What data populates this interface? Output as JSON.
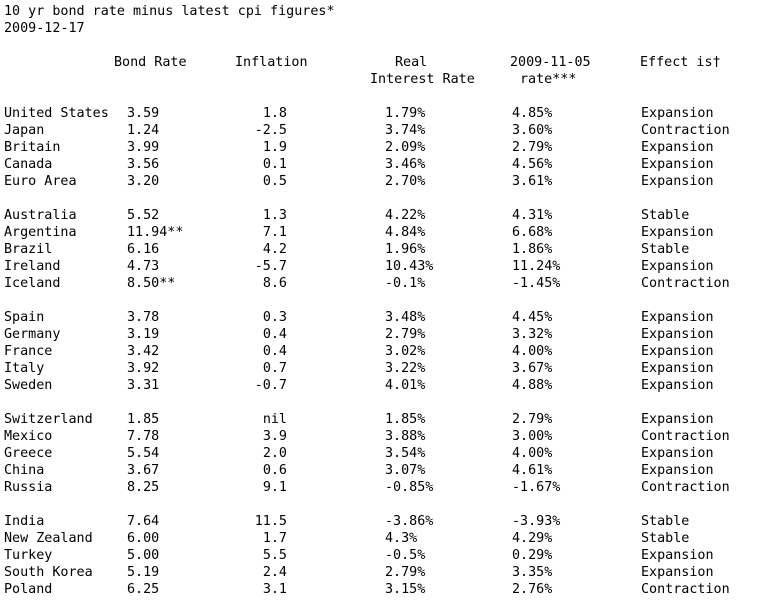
{
  "page": {
    "title": "10 yr bond rate minus latest cpi figures*",
    "date": "2009-12-17"
  },
  "header": {
    "bond_rate": "Bond Rate",
    "inflation": "Inflation",
    "real_line1": "Real",
    "real_line2": "Interest Rate",
    "rate_line1": "2009-11-05",
    "rate_line2": "rate***",
    "effect": "Effect is†"
  },
  "colors": {
    "text": "#000000",
    "background": "#ffffff"
  },
  "groups": [
    [
      {
        "country": "United States",
        "bond": "3.59",
        "inflation": "1.8",
        "real": "1.79%",
        "rate": "4.85%",
        "effect": "Expansion"
      },
      {
        "country": "Japan",
        "bond": "1.24",
        "inflation": "-2.5",
        "real": "3.74%",
        "rate": "3.60%",
        "effect": "Contraction"
      },
      {
        "country": "Britain",
        "bond": "3.99",
        "inflation": "1.9",
        "real": "2.09%",
        "rate": "2.79%",
        "effect": "Expansion"
      },
      {
        "country": "Canada",
        "bond": "3.56",
        "inflation": "0.1",
        "real": "3.46%",
        "rate": "4.56%",
        "effect": "Expansion"
      },
      {
        "country": "Euro Area",
        "bond": "3.20",
        "inflation": "0.5",
        "real": "2.70%",
        "rate": "3.61%",
        "effect": "Expansion"
      }
    ],
    [
      {
        "country": "Australia",
        "bond": "5.52",
        "inflation": "1.3",
        "real": "4.22%",
        "rate": "4.31%",
        "effect": "Stable"
      },
      {
        "country": "Argentina",
        "bond": "11.94**",
        "inflation": "7.1",
        "real": "4.84%",
        "rate": "6.68%",
        "effect": "Expansion"
      },
      {
        "country": "Brazil",
        "bond": "6.16",
        "inflation": "4.2",
        "real": "1.96%",
        "rate": "1.86%",
        "effect": "Stable"
      },
      {
        "country": "Ireland",
        "bond": "4.73",
        "inflation": "-5.7",
        "real": "10.43%",
        "rate": "11.24%",
        "effect": "Expansion"
      },
      {
        "country": "Iceland",
        "bond": "8.50**",
        "inflation": "8.6",
        "real": "-0.1%",
        "rate": "-1.45%",
        "effect": "Contraction"
      }
    ],
    [
      {
        "country": "Spain",
        "bond": "3.78",
        "inflation": "0.3",
        "real": "3.48%",
        "rate": "4.45%",
        "effect": "Expansion"
      },
      {
        "country": "Germany",
        "bond": "3.19",
        "inflation": "0.4",
        "real": "2.79%",
        "rate": "3.32%",
        "effect": "Expansion"
      },
      {
        "country": "France",
        "bond": "3.42",
        "inflation": "0.4",
        "real": "3.02%",
        "rate": "4.00%",
        "effect": "Expansion"
      },
      {
        "country": "Italy",
        "bond": "3.92",
        "inflation": "0.7",
        "real": "3.22%",
        "rate": "3.67%",
        "effect": "Expansion"
      },
      {
        "country": "Sweden",
        "bond": "3.31",
        "inflation": "-0.7",
        "real": "4.01%",
        "rate": "4.88%",
        "effect": "Expansion"
      }
    ],
    [
      {
        "country": "Switzerland",
        "bond": "1.85",
        "inflation": "nil",
        "real": "1.85%",
        "rate": "2.79%",
        "effect": "Expansion"
      },
      {
        "country": "Mexico",
        "bond": "7.78",
        "inflation": "3.9",
        "real": "3.88%",
        "rate": "3.00%",
        "effect": "Contraction"
      },
      {
        "country": "Greece",
        "bond": "5.54",
        "inflation": "2.0",
        "real": "3.54%",
        "rate": "4.00%",
        "effect": "Expansion"
      },
      {
        "country": "China",
        "bond": "3.67",
        "inflation": "0.6",
        "real": "3.07%",
        "rate": "4.61%",
        "effect": "Expansion"
      },
      {
        "country": "Russia",
        "bond": "8.25",
        "inflation": "9.1",
        "real": "-0.85%",
        "rate": "-1.67%",
        "effect": "Contraction"
      }
    ],
    [
      {
        "country": "India",
        "bond": "7.64",
        "inflation": "11.5",
        "real": "-3.86%",
        "rate": "-3.93%",
        "effect": "Stable"
      },
      {
        "country": "New Zealand",
        "bond": "6.00",
        "inflation": "1.7",
        "real": "4.3%",
        "rate": "4.29%",
        "effect": "Stable"
      },
      {
        "country": "Turkey",
        "bond": "5.00",
        "inflation": "5.5",
        "real": "-0.5%",
        "rate": "0.29%",
        "effect": "Expansion"
      },
      {
        "country": "South Korea",
        "bond": "5.19",
        "inflation": "2.4",
        "real": "2.79%",
        "rate": "3.35%",
        "effect": "Expansion"
      },
      {
        "country": "Poland",
        "bond": "6.25",
        "inflation": "3.1",
        "real": "3.15%",
        "rate": "2.76%",
        "effect": "Contraction"
      }
    ]
  ]
}
